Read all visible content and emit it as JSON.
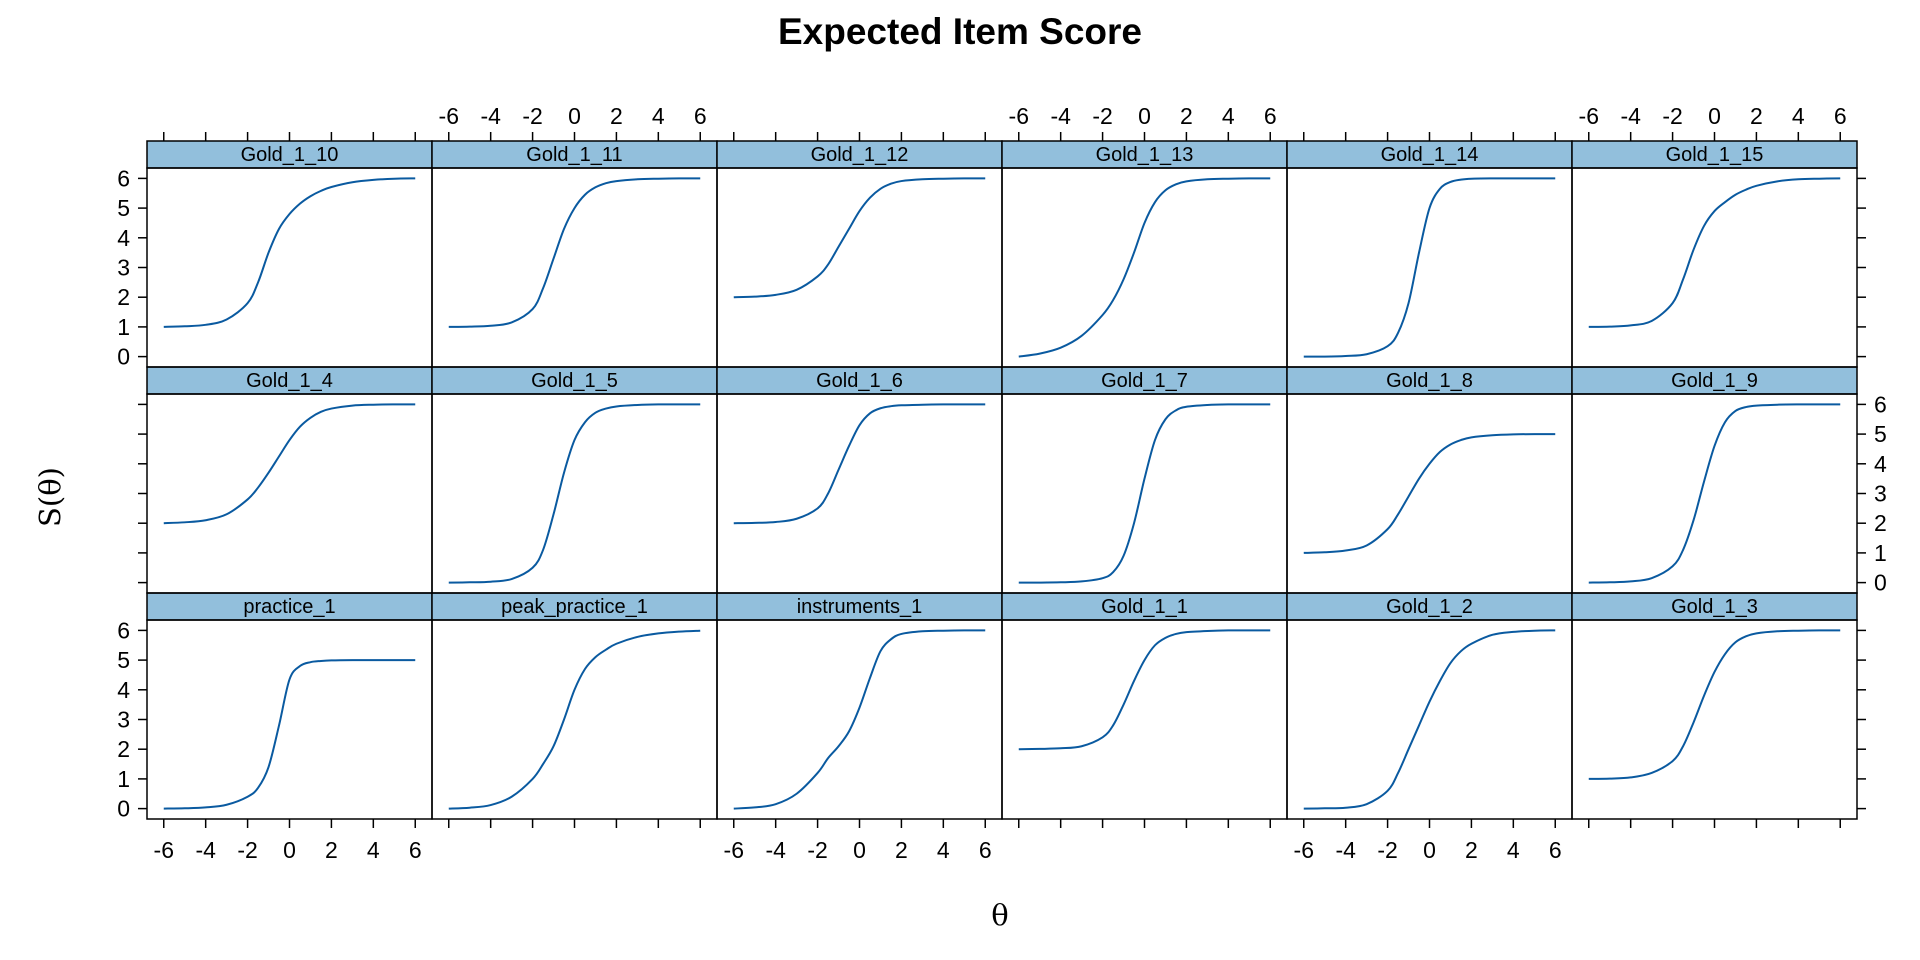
{
  "chart_data": {
    "type": "line",
    "title": "Expected Item Score",
    "xlabel": "θ",
    "ylabel": "S(θ)",
    "xlim": [
      -6.8,
      6.8
    ],
    "ylim": [
      -0.35,
      6.35
    ],
    "x_ticks": [
      -6,
      -4,
      -2,
      0,
      2,
      4,
      6
    ],
    "y_ticks": [
      0,
      1,
      2,
      3,
      4,
      5,
      6
    ],
    "layout": {
      "columns": 6,
      "rows": 3
    },
    "grid": false,
    "strip_color": "#92bfdc",
    "line_color": "#0a5aa0",
    "x": [
      -6,
      -5,
      -4,
      -3,
      -2,
      -1.5,
      -1,
      -0.5,
      0,
      0.5,
      1,
      1.5,
      2,
      3,
      4,
      5,
      6
    ],
    "panels": [
      {
        "name": "practice_1",
        "row": 1,
        "col": 1,
        "values": [
          0.0,
          0.01,
          0.04,
          0.13,
          0.4,
          0.7,
          1.4,
          2.8,
          4.35,
          4.8,
          4.93,
          4.97,
          4.99,
          5.0,
          5.0,
          5.0,
          5.0
        ]
      },
      {
        "name": "peak_practice_1",
        "row": 1,
        "col": 2,
        "values": [
          0.0,
          0.03,
          0.12,
          0.4,
          1.0,
          1.5,
          2.1,
          3.0,
          4.0,
          4.7,
          5.1,
          5.35,
          5.55,
          5.78,
          5.9,
          5.96,
          5.99
        ]
      },
      {
        "name": "instruments_1",
        "row": 1,
        "col": 3,
        "values": [
          0.0,
          0.04,
          0.15,
          0.5,
          1.2,
          1.7,
          2.1,
          2.6,
          3.4,
          4.4,
          5.3,
          5.7,
          5.88,
          5.97,
          5.99,
          6.0,
          6.0
        ]
      },
      {
        "name": "Gold_1_1",
        "row": 1,
        "col": 4,
        "values": [
          2.0,
          2.01,
          2.03,
          2.1,
          2.4,
          2.8,
          3.5,
          4.3,
          5.0,
          5.5,
          5.75,
          5.88,
          5.94,
          5.98,
          6.0,
          6.0,
          6.0
        ]
      },
      {
        "name": "Gold_1_2",
        "row": 1,
        "col": 5,
        "values": [
          0.0,
          0.01,
          0.03,
          0.15,
          0.6,
          1.2,
          2.0,
          2.8,
          3.6,
          4.3,
          4.9,
          5.3,
          5.55,
          5.85,
          5.95,
          5.99,
          6.0
        ]
      },
      {
        "name": "Gold_1_3",
        "row": 1,
        "col": 6,
        "values": [
          1.0,
          1.01,
          1.05,
          1.2,
          1.6,
          2.1,
          2.9,
          3.8,
          4.6,
          5.2,
          5.6,
          5.8,
          5.9,
          5.97,
          5.99,
          6.0,
          6.0
        ]
      },
      {
        "name": "Gold_1_4",
        "row": 2,
        "col": 1,
        "values": [
          2.0,
          2.03,
          2.1,
          2.3,
          2.8,
          3.2,
          3.7,
          4.25,
          4.8,
          5.25,
          5.55,
          5.75,
          5.86,
          5.96,
          5.99,
          6.0,
          6.0
        ]
      },
      {
        "name": "Gold_1_5",
        "row": 2,
        "col": 2,
        "values": [
          0.0,
          0.01,
          0.03,
          0.12,
          0.5,
          1.1,
          2.3,
          3.7,
          4.8,
          5.4,
          5.72,
          5.86,
          5.93,
          5.98,
          6.0,
          6.0,
          6.0
        ]
      },
      {
        "name": "Gold_1_6",
        "row": 2,
        "col": 3,
        "values": [
          2.0,
          2.01,
          2.04,
          2.15,
          2.5,
          3.0,
          3.8,
          4.6,
          5.3,
          5.7,
          5.87,
          5.94,
          5.97,
          5.99,
          6.0,
          6.0,
          6.0
        ]
      },
      {
        "name": "Gold_1_7",
        "row": 2,
        "col": 4,
        "values": [
          0.0,
          0.0,
          0.01,
          0.04,
          0.15,
          0.35,
          0.9,
          2.0,
          3.5,
          4.8,
          5.5,
          5.8,
          5.92,
          5.98,
          6.0,
          6.0,
          6.0
        ]
      },
      {
        "name": "Gold_1_8",
        "row": 2,
        "col": 5,
        "values": [
          1.0,
          1.02,
          1.08,
          1.25,
          1.8,
          2.3,
          2.9,
          3.5,
          4.0,
          4.4,
          4.65,
          4.8,
          4.89,
          4.96,
          4.99,
          5.0,
          5.0
        ]
      },
      {
        "name": "Gold_1_9",
        "row": 2,
        "col": 6,
        "values": [
          0.0,
          0.01,
          0.04,
          0.15,
          0.55,
          1.1,
          2.1,
          3.4,
          4.6,
          5.4,
          5.78,
          5.91,
          5.96,
          5.99,
          6.0,
          6.0,
          6.0
        ]
      },
      {
        "name": "Gold_1_10",
        "row": 3,
        "col": 1,
        "values": [
          1.0,
          1.02,
          1.07,
          1.25,
          1.8,
          2.5,
          3.5,
          4.3,
          4.8,
          5.15,
          5.4,
          5.58,
          5.71,
          5.87,
          5.95,
          5.99,
          6.0
        ]
      },
      {
        "name": "Gold_1_11",
        "row": 3,
        "col": 2,
        "values": [
          1.0,
          1.01,
          1.04,
          1.15,
          1.6,
          2.3,
          3.3,
          4.3,
          5.0,
          5.45,
          5.7,
          5.84,
          5.91,
          5.97,
          5.99,
          6.0,
          6.0
        ]
      },
      {
        "name": "Gold_1_12",
        "row": 3,
        "col": 3,
        "values": [
          2.0,
          2.02,
          2.08,
          2.25,
          2.7,
          3.1,
          3.7,
          4.3,
          4.9,
          5.35,
          5.65,
          5.82,
          5.91,
          5.97,
          5.99,
          6.0,
          6.0
        ]
      },
      {
        "name": "Gold_1_13",
        "row": 3,
        "col": 4,
        "values": [
          0.0,
          0.1,
          0.3,
          0.7,
          1.4,
          1.9,
          2.6,
          3.5,
          4.5,
          5.2,
          5.6,
          5.8,
          5.9,
          5.97,
          5.99,
          6.0,
          6.0
        ]
      },
      {
        "name": "Gold_1_14",
        "row": 3,
        "col": 5,
        "values": [
          0.0,
          0.0,
          0.02,
          0.08,
          0.35,
          0.8,
          1.8,
          3.5,
          5.0,
          5.65,
          5.88,
          5.96,
          5.99,
          6.0,
          6.0,
          6.0,
          6.0
        ]
      },
      {
        "name": "Gold_1_15",
        "row": 3,
        "col": 6,
        "values": [
          1.0,
          1.01,
          1.05,
          1.2,
          1.8,
          2.6,
          3.6,
          4.4,
          4.9,
          5.2,
          5.45,
          5.62,
          5.75,
          5.9,
          5.97,
          5.99,
          6.0
        ]
      }
    ]
  }
}
